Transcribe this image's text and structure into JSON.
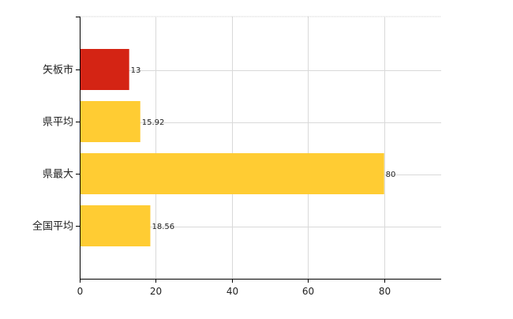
{
  "chart_data": {
    "type": "bar",
    "orientation": "horizontal",
    "categories": [
      "矢板市",
      "県平均",
      "県最大",
      "全国平均"
    ],
    "values": [
      13,
      15.92,
      80,
      18.56
    ],
    "data_labels": [
      "13",
      "15.92",
      "80",
      "18.56"
    ],
    "bar_colors": [
      "#D42414",
      "#FFCC33",
      "#FFCC33",
      "#FFCC33"
    ],
    "xlim": [
      0,
      95
    ],
    "x_ticks": [
      0,
      20,
      40,
      60,
      80
    ],
    "x_tick_labels": [
      "0",
      "20",
      "40",
      "60",
      "80"
    ],
    "grid": true,
    "gridline_color": "#d9d9d9",
    "axis_color": "#000000"
  }
}
